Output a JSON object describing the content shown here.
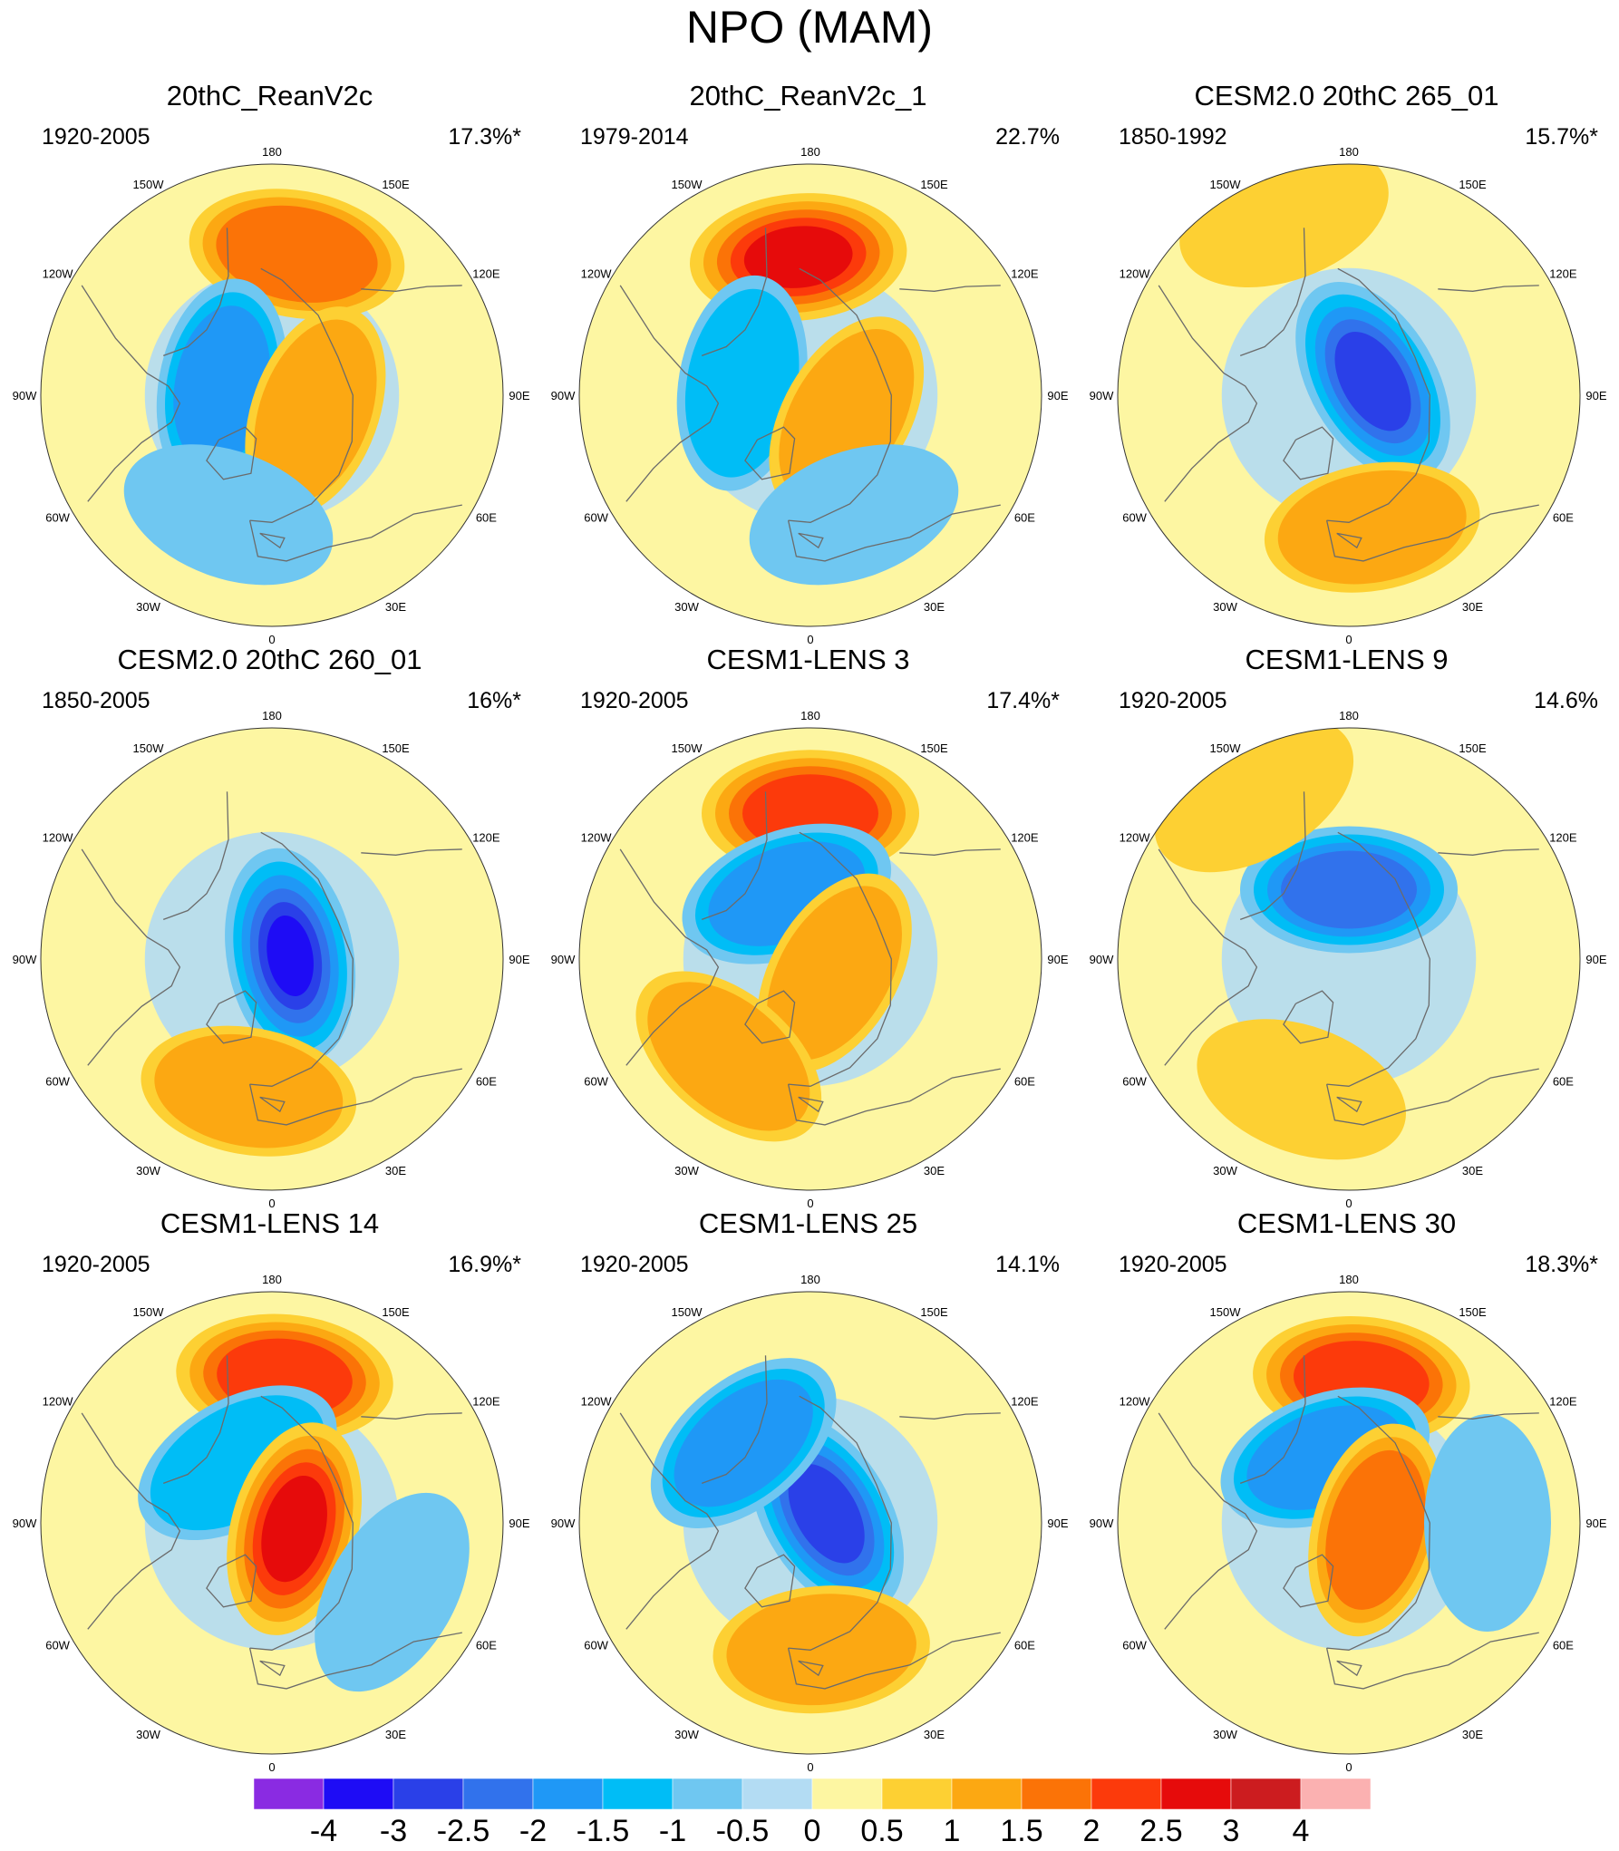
{
  "title": "NPO (MAM)",
  "longitude_labels": [
    "180",
    "150E",
    "120E",
    "90E",
    "60E",
    "30E",
    "0",
    "30W",
    "60W",
    "90W",
    "120W",
    "150W"
  ],
  "colors": {
    "background": "#ffffff",
    "coastline": "#6b6b6b",
    "circle_border": "#333333"
  },
  "panels": [
    {
      "title": "20thC_ReanV2c",
      "period": "1920-2005",
      "pct": "17.3%*",
      "features": [
        {
          "type": "pos",
          "level": 3,
          "lon": 170,
          "r": 0.62
        },
        {
          "type": "neg",
          "level": 3,
          "lon": 260,
          "r": 0.22
        },
        {
          "type": "pos",
          "level": 2,
          "lon": 70,
          "r": 0.2
        },
        {
          "type": "neg",
          "level": 1,
          "lon": 340,
          "r": 0.55
        }
      ]
    },
    {
      "title": "20thC_ReanV2c_1",
      "period": "1979-2014",
      "pct": "22.7%",
      "features": [
        {
          "type": "pos",
          "level": 5,
          "lon": 185,
          "r": 0.6
        },
        {
          "type": "neg",
          "level": 2,
          "lon": 260,
          "r": 0.3
        },
        {
          "type": "pos",
          "level": 2,
          "lon": 60,
          "r": 0.18
        },
        {
          "type": "neg",
          "level": 1,
          "lon": 20,
          "r": 0.55
        }
      ]
    },
    {
      "title": "CESM2.0 20thC 265_01",
      "period": "1850-1992",
      "pct": "15.7%*",
      "features": [
        {
          "type": "neg",
          "level": 5,
          "lon": 120,
          "r": 0.12
        },
        {
          "type": "pos",
          "level": 2,
          "lon": 10,
          "r": 0.58
        },
        {
          "type": "pos",
          "level": 1,
          "lon": 200,
          "r": 0.82
        }
      ]
    },
    {
      "title": "CESM2.0 20thC 260_01",
      "period": "1850-2005",
      "pct": "16%*",
      "features": [
        {
          "type": "neg",
          "level": 6,
          "lon": 100,
          "r": 0.08
        },
        {
          "type": "pos",
          "level": 2,
          "lon": 350,
          "r": 0.58
        }
      ]
    },
    {
      "title": "CESM1-LENS 3",
      "period": "1920-2005",
      "pct": "17.4%*",
      "features": [
        {
          "type": "pos",
          "level": 4,
          "lon": 180,
          "r": 0.63
        },
        {
          "type": "neg",
          "level": 3,
          "lon": 200,
          "r": 0.3
        },
        {
          "type": "pos",
          "level": 2,
          "lon": 60,
          "r": 0.12
        },
        {
          "type": "pos",
          "level": 2,
          "lon": 320,
          "r": 0.55
        }
      ]
    },
    {
      "title": "CESM1-LENS 9",
      "period": "1920-2005",
      "pct": "14.6%",
      "features": [
        {
          "type": "neg",
          "level": 4,
          "lon": 180,
          "r": 0.3
        },
        {
          "type": "pos",
          "level": 1,
          "lon": 210,
          "r": 0.82
        },
        {
          "type": "pos",
          "level": 1,
          "lon": 340,
          "r": 0.6
        }
      ]
    },
    {
      "title": "CESM1-LENS 14",
      "period": "1920-2005",
      "pct": "16.9%*",
      "features": [
        {
          "type": "pos",
          "level": 4,
          "lon": 175,
          "r": 0.63
        },
        {
          "type": "neg",
          "level": 2,
          "lon": 210,
          "r": 0.3
        },
        {
          "type": "pos",
          "level": 5,
          "lon": 75,
          "r": 0.1
        },
        {
          "type": "neg",
          "level": 1,
          "lon": 60,
          "r": 0.6
        }
      ]
    },
    {
      "title": "CESM1-LENS 25",
      "period": "1920-2005",
      "pct": "14.1%",
      "features": [
        {
          "type": "neg",
          "level": 5,
          "lon": 120,
          "r": 0.08
        },
        {
          "type": "neg",
          "level": 3,
          "lon": 220,
          "r": 0.45
        },
        {
          "type": "pos",
          "level": 2,
          "lon": 5,
          "r": 0.55
        }
      ]
    },
    {
      "title": "CESM1-LENS 30",
      "period": "1920-2005",
      "pct": "18.3%*",
      "features": [
        {
          "type": "pos",
          "level": 4,
          "lon": 175,
          "r": 0.62
        },
        {
          "type": "neg",
          "level": 3,
          "lon": 200,
          "r": 0.3
        },
        {
          "type": "pos",
          "level": 3,
          "lon": 75,
          "r": 0.12
        },
        {
          "type": "neg",
          "level": 1,
          "lon": 90,
          "r": 0.6
        }
      ]
    }
  ],
  "colorbar": {
    "labels": [
      "-4",
      "-3",
      "-2.5",
      "-2",
      "-1.5",
      "-1",
      "-0.5",
      "0",
      "0.5",
      "1",
      "1.5",
      "2",
      "2.5",
      "3",
      "4"
    ],
    "colors": [
      "#8a2be2",
      "#1e0cf5",
      "#2a40e8",
      "#3172ec",
      "#1f98f6",
      "#00bdf6",
      "#6fc7f1",
      "#b3dcf3",
      "#fdf6a2",
      "#fdd033",
      "#fca812",
      "#fb7307",
      "#fc3a0b",
      "#e60b0b",
      "#cc1c1f",
      "#fbb1b1"
    ]
  }
}
